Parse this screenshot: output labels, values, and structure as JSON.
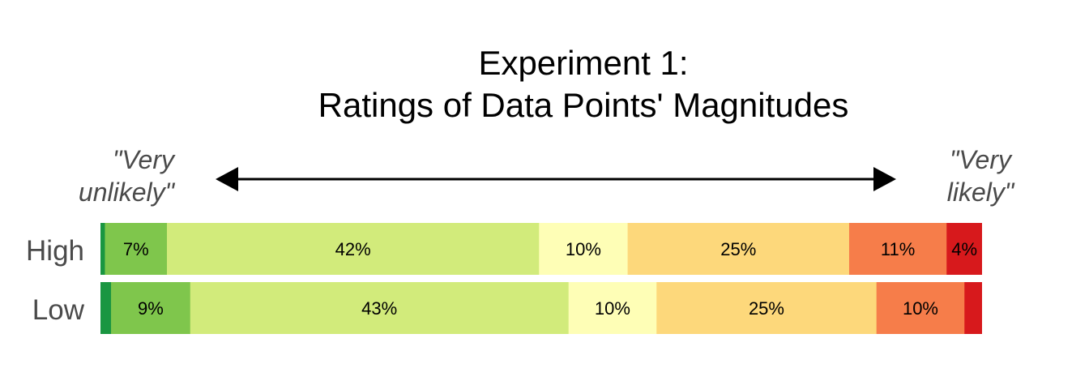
{
  "chart_data": {
    "type": "bar",
    "orientation": "horizontal-stacked",
    "title_line1": "Experiment 1:",
    "title_line2": "Ratings of Data Points' Magnitudes",
    "anchor_left": "\"Very unlikely\"",
    "anchor_left_line1": "\"Very",
    "anchor_left_line2": "unlikely\"",
    "anchor_right": "\"Very likely\"",
    "anchor_right_line1": "\"Very",
    "anchor_right_line2": "likely\"",
    "categories": [
      "High",
      "Low"
    ],
    "colors": [
      "#1a9641",
      "#7fc64c",
      "#d2eb7b",
      "#fefeb6",
      "#fdd87b",
      "#f67d4a",
      "#d7191c"
    ],
    "series": [
      {
        "values": [
          0.5,
          1.2
        ]
      },
      {
        "values": [
          7,
          9
        ]
      },
      {
        "values": [
          42,
          43
        ]
      },
      {
        "values": [
          10,
          10
        ]
      },
      {
        "values": [
          25,
          25
        ]
      },
      {
        "values": [
          11,
          10
        ]
      },
      {
        "values": [
          4,
          2
        ]
      }
    ],
    "labels": [
      [
        "",
        "7%",
        "42%",
        "10%",
        "25%",
        "11%",
        "4%"
      ],
      [
        "",
        "9%",
        "43%",
        "10%",
        "25%",
        "10%",
        ""
      ]
    ]
  }
}
